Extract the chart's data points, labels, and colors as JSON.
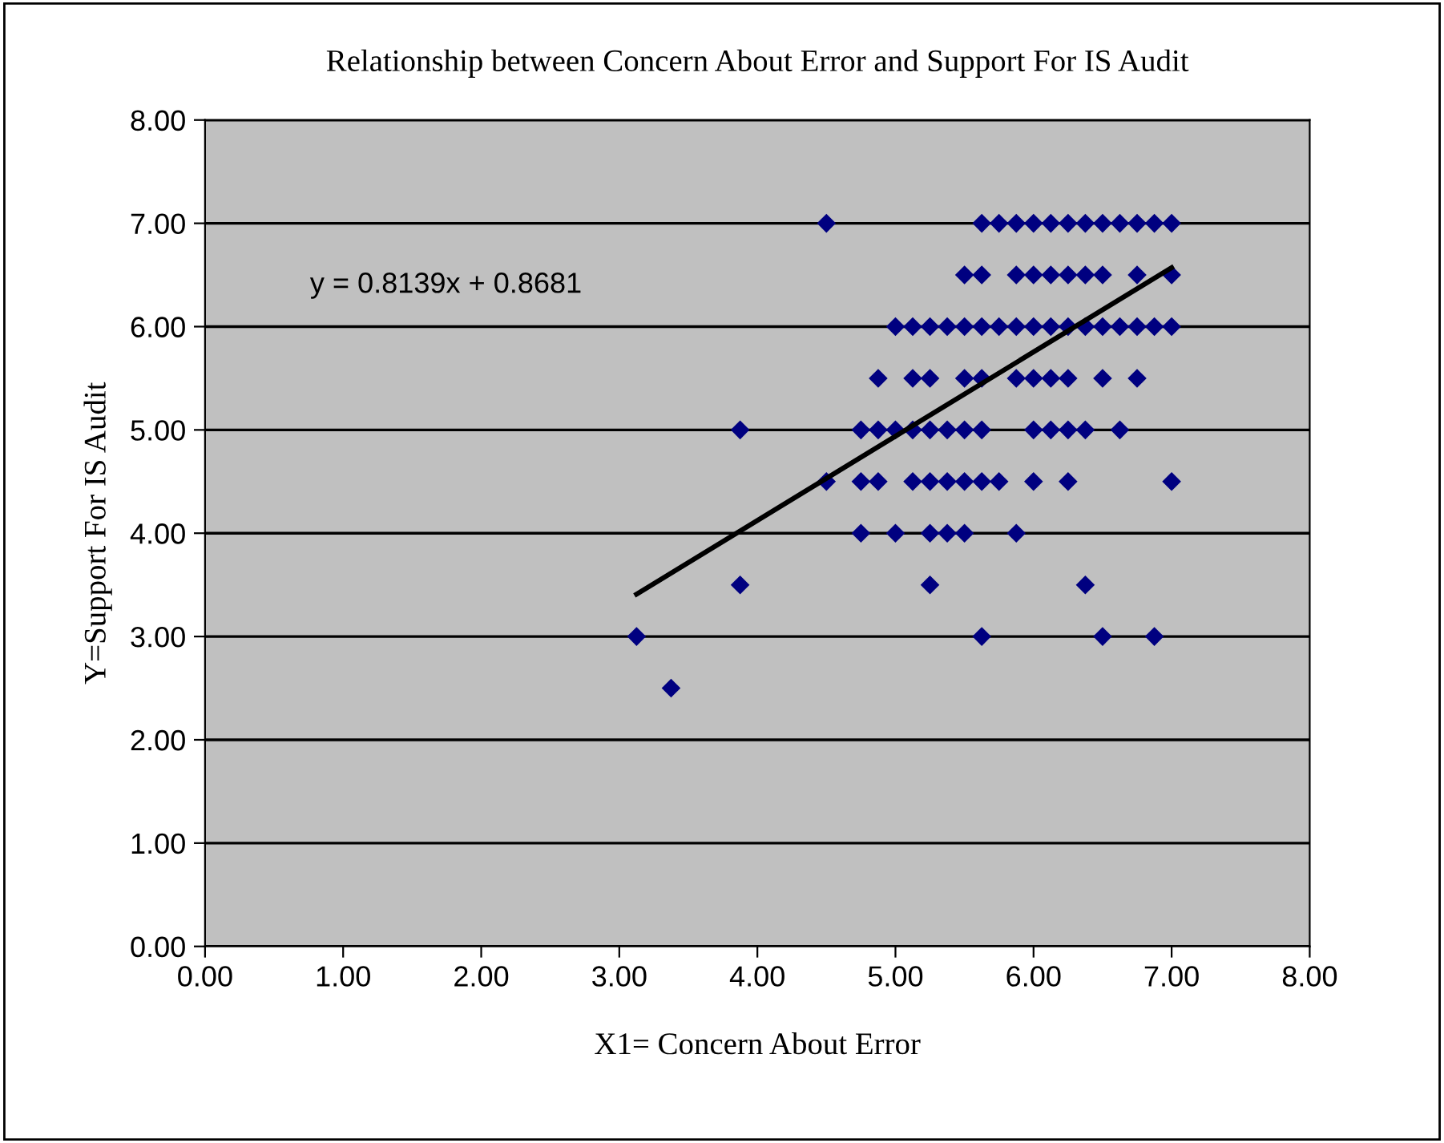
{
  "chart_data": {
    "type": "scatter",
    "title": "Relationship between Concern About Error and Support For IS Audit",
    "xlabel": "X1= Concern About Error",
    "ylabel": "Y=Support For IS Audit",
    "annotations": [
      "y = 0.8139x + 0.8681"
    ],
    "xlim": [
      0,
      8
    ],
    "ylim": [
      0,
      8
    ],
    "xticks": [
      {
        "value": 0,
        "label": "0.00"
      },
      {
        "value": 1,
        "label": "1.00"
      },
      {
        "value": 2,
        "label": "2.00"
      },
      {
        "value": 3,
        "label": "3.00"
      },
      {
        "value": 4,
        "label": "4.00"
      },
      {
        "value": 5,
        "label": "5.00"
      },
      {
        "value": 6,
        "label": "6.00"
      },
      {
        "value": 7,
        "label": "7.00"
      },
      {
        "value": 8,
        "label": "8.00"
      }
    ],
    "yticks": [
      {
        "value": 0,
        "label": "0.00"
      },
      {
        "value": 1,
        "label": "1.00"
      },
      {
        "value": 2,
        "label": "2.00"
      },
      {
        "value": 3,
        "label": "3.00"
      },
      {
        "value": 4,
        "label": "4.00"
      },
      {
        "value": 5,
        "label": "5.00"
      },
      {
        "value": 6,
        "label": "6.00"
      },
      {
        "value": 7,
        "label": "7.00"
      },
      {
        "value": 8,
        "label": "8.00"
      }
    ],
    "grid": "y",
    "legend": false,
    "marker": "diamond",
    "series": [
      {
        "color": "#000080",
        "x": [
          4.5,
          5.625,
          5.75,
          5.875,
          6.0,
          6.125,
          6.25,
          6.375,
          6.5,
          6.625,
          6.75,
          6.875,
          7.0,
          5.5,
          5.625,
          5.875,
          6.0,
          6.125,
          6.25,
          6.375,
          6.5,
          6.75,
          7.0,
          5.0,
          5.125,
          5.25,
          5.375,
          5.5,
          5.625,
          5.75,
          5.875,
          6.0,
          6.125,
          6.25,
          6.375,
          6.5,
          6.625,
          6.75,
          6.875,
          7.0,
          4.875,
          5.125,
          5.25,
          5.5,
          5.625,
          5.875,
          6.0,
          6.125,
          6.25,
          6.5,
          6.75,
          3.875,
          4.75,
          4.875,
          5.0,
          5.125,
          5.25,
          5.375,
          5.5,
          5.625,
          6.0,
          6.125,
          6.25,
          6.375,
          6.625,
          4.5,
          4.75,
          4.875,
          5.125,
          5.25,
          5.375,
          5.5,
          5.625,
          5.75,
          6.0,
          6.25,
          7.0,
          4.75,
          5.0,
          5.25,
          5.375,
          5.5,
          5.875,
          3.875,
          5.25,
          6.375,
          3.125,
          5.625,
          6.5,
          6.875,
          3.375
        ],
        "values": [
          7,
          7,
          7,
          7,
          7,
          7,
          7,
          7,
          7,
          7,
          7,
          7,
          7,
          6.5,
          6.5,
          6.5,
          6.5,
          6.5,
          6.5,
          6.5,
          6.5,
          6.5,
          6.5,
          6,
          6,
          6,
          6,
          6,
          6,
          6,
          6,
          6,
          6,
          6,
          6,
          6,
          6,
          6,
          6,
          6,
          5.5,
          5.5,
          5.5,
          5.5,
          5.5,
          5.5,
          5.5,
          5.5,
          5.5,
          5.5,
          5.5,
          5,
          5,
          5,
          5,
          5,
          5,
          5,
          5,
          5,
          5,
          5,
          5,
          5,
          5,
          4.5,
          4.5,
          4.5,
          4.5,
          4.5,
          4.5,
          4.5,
          4.5,
          4.5,
          4.5,
          4.5,
          4.5,
          4,
          4,
          4,
          4,
          4,
          4,
          3.5,
          3.5,
          3.5,
          3,
          3,
          3,
          3,
          2.5
        ]
      },
      {
        "type": "line",
        "color": "#000000",
        "marker": "none",
        "line_style": "solid",
        "x": [
          3.125,
          7.0
        ],
        "values": [
          3.41,
          6.57
        ]
      }
    ]
  }
}
